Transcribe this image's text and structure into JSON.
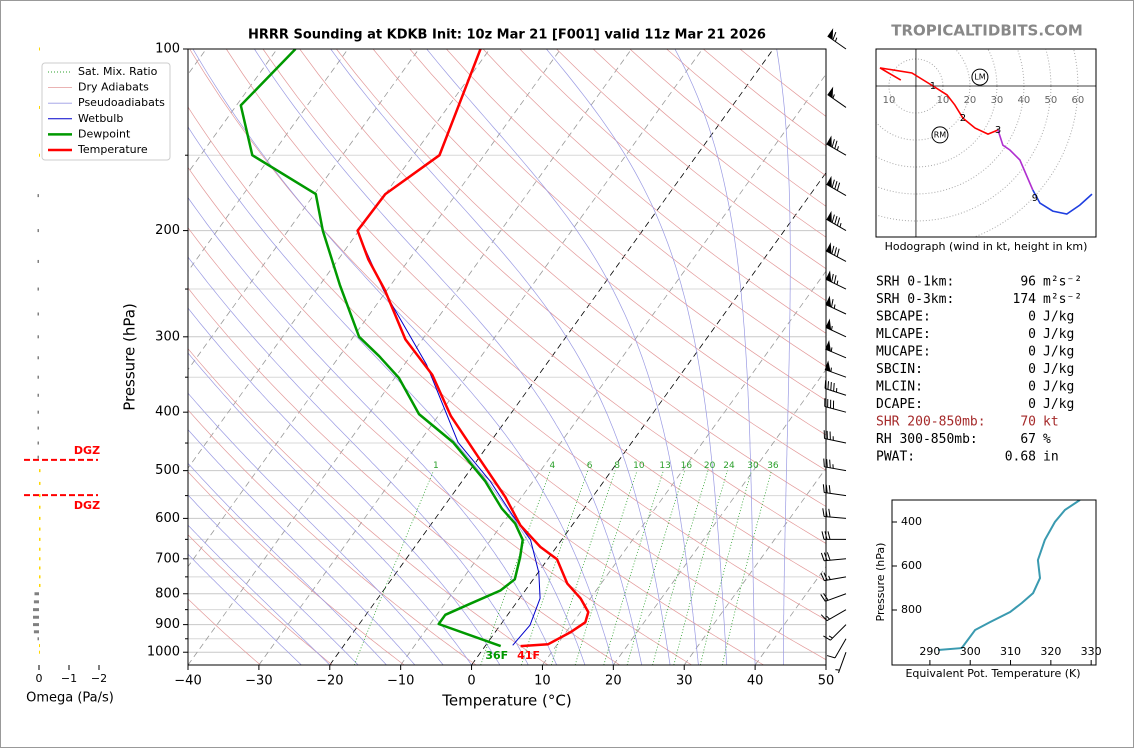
{
  "site_title": "TROPICALTIDBITS.COM",
  "indices": [
    {
      "label": "SRH 0-1km:",
      "value": 96,
      "unit": "m²s⁻²"
    },
    {
      "label": "SRH 0-3km:",
      "value": 174,
      "unit": "m²s⁻²"
    },
    {
      "label": "SBCAPE:",
      "value": 0,
      "unit": "J/kg"
    },
    {
      "label": "MLCAPE:",
      "value": 0,
      "unit": "J/kg"
    },
    {
      "label": "MUCAPE:",
      "value": 0,
      "unit": "J/kg"
    },
    {
      "label": "SBCIN:",
      "value": 0,
      "unit": "J/kg"
    },
    {
      "label": "MLCIN:",
      "value": 0,
      "unit": "J/kg"
    },
    {
      "label": "DCAPE:",
      "value": 0,
      "unit": "J/kg"
    },
    {
      "label": "SHR 200-850mb:",
      "value": 70,
      "unit": "kt",
      "color": "#a52a2a"
    },
    {
      "label": "RH 300-850mb:",
      "value": 67,
      "unit": "%"
    },
    {
      "label": "PWAT:",
      "value": 0.68,
      "unit": "in"
    }
  ],
  "chart_data": [
    {
      "type": "skewt",
      "title": "HRRR Sounding at KDKB Init: 10z Mar 21 [F001] valid 11z Mar 21 2026",
      "x_label": "Temperature (°C)",
      "y_label": "Pressure (hPa)",
      "xlim": [
        -40,
        50
      ],
      "ylim": [
        1050,
        100
      ],
      "log_y": true,
      "grid": true,
      "legend": "upper left",
      "xticks": [
        {
          "value": -40,
          "label": "−40"
        },
        {
          "value": -30,
          "label": "−30"
        },
        {
          "value": -20,
          "label": "−20"
        },
        {
          "value": -10,
          "label": "−10"
        },
        0,
        10,
        20,
        30,
        40,
        50
      ],
      "yticks": [
        100,
        200,
        300,
        400,
        500,
        600,
        700,
        800,
        900,
        1000
      ],
      "yminor": [
        150,
        250,
        350,
        450,
        550,
        650,
        750,
        850,
        950
      ],
      "reference_lines": [
        {
          "name": "Sat. Mix. Ratio",
          "color": "#2ca02c",
          "values": [
            1,
            4,
            6,
            8,
            10,
            13,
            16,
            20,
            24,
            30,
            36
          ]
        },
        {
          "name": "Dry Adiabats",
          "color": "#e39a9a"
        },
        {
          "name": "Pseudoadiabats",
          "color": "#9a9ae3"
        }
      ],
      "series": [
        {
          "name": "Wetbulb",
          "color": "#0000cc",
          "line_width": 1,
          "pressures": [
            974,
            902,
            814,
            738,
            651,
            592,
            520,
            449,
            334,
            278,
            251,
            200,
            174,
            150,
            100
          ],
          "values": [
            3.8,
            4.2,
            2.9,
            0.1,
            -4.4,
            -9.5,
            -16.1,
            -24.5,
            -36.8,
            -45.6,
            -50.5,
            -60.3,
            -60.1,
            -56.4,
            -61.3
          ]
        },
        {
          "name": "Dewpoint",
          "color": "#009900",
          "line_width": 2.5,
          "surface_label": "36F",
          "pressures": [
            977,
            898,
            867,
            831,
            790,
            757,
            696,
            651,
            612,
            578,
            520,
            449,
            403,
            351,
            323,
            300,
            246,
            200,
            174,
            150,
            124,
            100
          ],
          "values": [
            2.2,
            -8.8,
            -8.8,
            -6.4,
            -3.5,
            -2.6,
            -4.1,
            -5.5,
            -8.2,
            -11.6,
            -16.8,
            -25.2,
            -32.9,
            -39.4,
            -44.4,
            -49.2,
            -57.2,
            -65.1,
            -69.8,
            -82.7,
            -89.4,
            -87.4
          ]
        },
        {
          "name": "Temperature",
          "color": "#ff0000",
          "line_width": 2.5,
          "surface_label": "41F",
          "pressures": [
            977,
            970,
            927,
            892,
            858,
            814,
            769,
            701,
            669,
            616,
            553,
            479,
            406,
            347,
            303,
            251,
            223,
            200,
            174,
            150,
            100
          ],
          "values": [
            5,
            8.7,
            10.6,
            11.7,
            11.1,
            8.6,
            5.2,
            1.3,
            -2.3,
            -7.3,
            -12.3,
            -19.7,
            -28.2,
            -35,
            -42.4,
            -50.3,
            -55.8,
            -60.2,
            -60,
            -56.3,
            -61.3
          ]
        }
      ],
      "winds": {
        "pressures": [
          100,
          125,
          150,
          175,
          200,
          225,
          250,
          275,
          300,
          325,
          350,
          375,
          400,
          450,
          500,
          550,
          600,
          650,
          700,
          750,
          800,
          850,
          900,
          950,
          1000
        ],
        "speeds": [
          65,
          55,
          75,
          80,
          85,
          80,
          75,
          65,
          55,
          55,
          55,
          45,
          40,
          35,
          35,
          30,
          30,
          30,
          30,
          25,
          20,
          15,
          15,
          10,
          5
        ],
        "directions": [
          305,
          305,
          300,
          300,
          300,
          298,
          296,
          295,
          295,
          293,
          290,
          288,
          285,
          282,
          280,
          278,
          275,
          270,
          265,
          260,
          250,
          240,
          225,
          210,
          200
        ]
      }
    },
    {
      "type": "hodograph",
      "caption": "Hodograph (wind in kt, height in km)",
      "xlim": [
        -14.8,
        66.7
      ],
      "ylim": [
        -55.9,
        13.7
      ],
      "xticks": [
        {
          "value": -10,
          "label": "10"
        },
        10,
        20,
        30,
        40,
        50,
        60
      ],
      "segments": [
        {
          "color": "#ff0000",
          "u": [
            -5.6,
            -13.3,
            -1.5,
            6.3,
            11.5,
            14.4,
            17.4,
            21.9,
            26.7,
            30.4
          ],
          "v": [
            2.2,
            6.7,
            4.8,
            0,
            -3.3,
            -7.0,
            -11.9,
            -15.6,
            -17.8,
            -16.3
          ]
        },
        {
          "color": "#b030d0",
          "u": [
            30.4,
            32.2,
            34.8,
            38.5,
            43.3
          ],
          "v": [
            -16.3,
            -21.9,
            -23.7,
            -27.4,
            -38.5
          ]
        },
        {
          "color": "#1f3fe0",
          "u": [
            43.3,
            45.9,
            50.7,
            55.9,
            60.7,
            65.2
          ],
          "v": [
            -38.5,
            -43.3,
            -46.3,
            -47.4,
            -44.1,
            -40
          ]
        }
      ],
      "height_markers": {
        "labels": [
          1,
          2,
          3,
          9
        ],
        "u": [
          6.3,
          17.4,
          30.4,
          44.1
        ],
        "v": [
          0,
          -11.9,
          -16.3,
          -41.5
        ]
      },
      "storm_motions": [
        {
          "label": "LM",
          "u": 23.7,
          "v": 3.3
        },
        {
          "label": "RM",
          "u": 8.9,
          "v": -18.1
        }
      ]
    },
    {
      "type": "line",
      "x_label": "Equivalent Pot. Temperature (K)",
      "y_label": "Pressure (hPa)",
      "xlim": [
        280.6,
        331.2
      ],
      "ylim": [
        1050,
        300
      ],
      "xticks": [
        290,
        300,
        310,
        320,
        330
      ],
      "yticks": [
        400,
        600,
        800
      ],
      "color": "#3a9ab0",
      "pressures": [
        982,
        973,
        936,
        891,
        855,
        809,
        768,
        723,
        655,
        573,
        482,
        400,
        345,
        300
      ],
      "values": [
        292.0,
        297.9,
        299.4,
        301.2,
        304.9,
        309.9,
        312.8,
        315.6,
        317.3,
        316.8,
        318.5,
        321.0,
        323.5,
        327.2
      ]
    },
    {
      "type": "bar",
      "orientation": "horizontal",
      "x_label": "Omega (Pa/s)",
      "xlim": [
        0.5,
        -2.3
      ],
      "ylim": [
        1050,
        100
      ],
      "log_y": true,
      "xticks": [
        0,
        {
          "value": -1,
          "label": "−1"
        },
        {
          "value": -2,
          "label": "−2"
        }
      ],
      "pressures": [
        100,
        125,
        150,
        175,
        200,
        225,
        250,
        275,
        300,
        325,
        350,
        375,
        400,
        425,
        450,
        475,
        500,
        525,
        550,
        575,
        600,
        625,
        650,
        675,
        700,
        725,
        750,
        775,
        800,
        825,
        850,
        875,
        900,
        925,
        950,
        975,
        1000
      ],
      "values": [
        -0.03,
        -0.03,
        -0.03,
        0.05,
        0.05,
        0.05,
        0.05,
        0.05,
        0.05,
        0.05,
        0.05,
        0.05,
        0.05,
        0.05,
        0.05,
        0.05,
        -0.05,
        -0.05,
        -0.05,
        -0.05,
        -0.05,
        -0.05,
        -0.05,
        -0.05,
        -0.05,
        -0.05,
        -0.05,
        -0.05,
        0.15,
        0.17,
        0.2,
        0.2,
        0.2,
        0.17,
        0.05,
        -0.03,
        -0.03
      ],
      "colors": [
        "#ffd700",
        "#ffd700",
        "#ffd700",
        "#808080",
        "#808080",
        "#808080",
        "#808080",
        "#808080",
        "#808080",
        "#808080",
        "#808080",
        "#808080",
        "#808080",
        "#808080",
        "#808080",
        "#808080",
        "#ffd700",
        "#ffd700",
        "#ffd700",
        "#ffd700",
        "#ffd700",
        "#ffd700",
        "#ffd700",
        "#ffd700",
        "#ffd700",
        "#ffd700",
        "#ffd700",
        "#ffd700",
        "#808080",
        "#808080",
        "#808080",
        "#808080",
        "#808080",
        "#808080",
        "#808080",
        "#ffd700",
        "#ffd700"
      ],
      "annotations": [
        {
          "text": "DGZ",
          "pressure": 480,
          "color": "#ff0000"
        },
        {
          "text": "DGZ",
          "pressure": 549,
          "color": "#ff0000"
        }
      ]
    }
  ]
}
